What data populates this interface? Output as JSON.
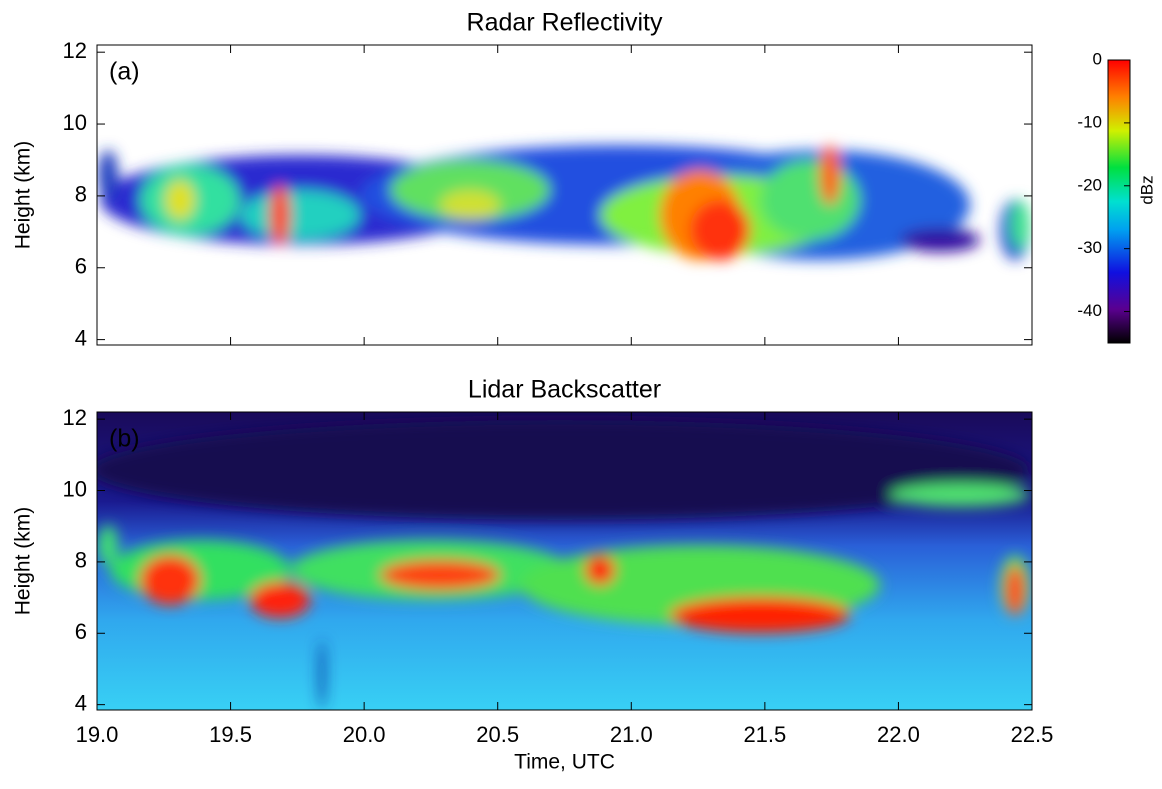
{
  "chart_data": [
    {
      "type": "heatmap",
      "title": "Radar Reflectivity",
      "panel_label": "(a)",
      "ylabel": "Height (km)",
      "xlim": [
        19,
        22.5
      ],
      "xticks": [
        19,
        19.5,
        20,
        20.5,
        21,
        21.5,
        22,
        22.5
      ],
      "xtick_labels": false,
      "ylim": [
        3.85,
        12.2
      ],
      "yticks": [
        4,
        6,
        8,
        10,
        12
      ],
      "colorbar": {
        "label": "dBz",
        "lim": [
          -45,
          0
        ],
        "ticks": [
          0,
          -10,
          -20,
          -30,
          -40
        ]
      }
    },
    {
      "type": "heatmap",
      "title": "Lidar Backscatter",
      "panel_label": "(b)",
      "ylabel": "Height (km)",
      "xlabel": "Time, UTC",
      "xlim": [
        19,
        22.5
      ],
      "xticks": [
        {
          "value": 19,
          "label": "19.0"
        },
        {
          "value": 19.5,
          "label": "19.5"
        },
        {
          "value": 20,
          "label": "20.0"
        },
        {
          "value": 20.5,
          "label": "20.5"
        },
        {
          "value": 21,
          "label": "21.0"
        },
        {
          "value": 21.5,
          "label": "21.5"
        },
        {
          "value": 22,
          "label": "22.0"
        },
        {
          "value": 22.5,
          "label": "22.5"
        }
      ],
      "xtick_labels": true,
      "ylim": [
        3.85,
        12.2
      ],
      "yticks": [
        4,
        6,
        8,
        10,
        12
      ]
    }
  ]
}
